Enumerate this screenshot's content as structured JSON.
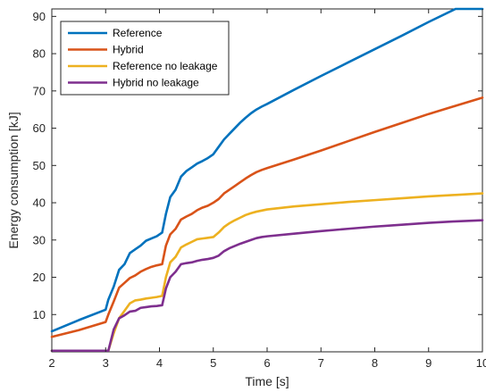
{
  "chart_data": {
    "type": "line",
    "title": "",
    "xlabel": "Time [s]",
    "ylabel": "Energy consumption [kJ]",
    "xlim": [
      2,
      10
    ],
    "ylim": [
      0,
      92
    ],
    "xticks": [
      2,
      3,
      4,
      5,
      6,
      7,
      8,
      9,
      10
    ],
    "yticks": [
      10,
      20,
      30,
      40,
      50,
      60,
      70,
      80,
      90
    ],
    "grid": false,
    "legend_position": "top-left",
    "series": [
      {
        "name": "Reference",
        "color": "#0072bd",
        "x": [
          2.0,
          2.5,
          3.0,
          3.05,
          3.15,
          3.25,
          3.35,
          3.45,
          3.55,
          3.65,
          3.75,
          3.85,
          3.95,
          4.05,
          4.12,
          4.2,
          4.3,
          4.4,
          4.5,
          4.6,
          4.7,
          4.8,
          4.9,
          5.0,
          5.1,
          5.2,
          5.3,
          5.4,
          5.5,
          5.6,
          5.7,
          5.8,
          5.9,
          6.0,
          6.5,
          7.0,
          7.5,
          8.0,
          8.5,
          9.0,
          9.5,
          10.0
        ],
        "y": [
          5.5,
          8.5,
          11.3,
          14.0,
          17.5,
          22.0,
          23.5,
          26.5,
          27.5,
          28.5,
          29.8,
          30.4,
          31.0,
          32.0,
          37.0,
          41.5,
          43.5,
          47.0,
          48.5,
          49.5,
          50.5,
          51.2,
          52.0,
          53.0,
          55.0,
          57.0,
          58.5,
          60.0,
          61.5,
          62.8,
          64.0,
          65.0,
          65.8,
          66.5,
          70.3,
          74.0,
          77.6,
          81.2,
          84.8,
          88.5,
          92.0,
          92.0
        ]
      },
      {
        "name": "Hybrid",
        "color": "#d95319",
        "x": [
          2.0,
          2.5,
          3.0,
          3.05,
          3.15,
          3.25,
          3.35,
          3.45,
          3.55,
          3.65,
          3.75,
          3.85,
          3.95,
          4.05,
          4.12,
          4.2,
          4.3,
          4.4,
          4.5,
          4.6,
          4.7,
          4.8,
          4.9,
          5.0,
          5.1,
          5.2,
          5.3,
          5.4,
          5.5,
          5.6,
          5.7,
          5.8,
          5.9,
          6.0,
          6.5,
          7.0,
          7.5,
          8.0,
          8.5,
          9.0,
          9.5,
          10.0
        ],
        "y": [
          4.0,
          5.8,
          8.0,
          10.0,
          13.5,
          17.2,
          18.5,
          19.8,
          20.5,
          21.5,
          22.2,
          22.8,
          23.2,
          23.5,
          28.5,
          31.5,
          33.0,
          35.5,
          36.3,
          37.0,
          38.0,
          38.7,
          39.2,
          40.0,
          41.0,
          42.5,
          43.5,
          44.5,
          45.5,
          46.5,
          47.4,
          48.2,
          48.8,
          49.3,
          51.6,
          54.0,
          56.5,
          59.0,
          61.4,
          63.8,
          66.0,
          68.2
        ]
      },
      {
        "name": "Reference no leakage",
        "color": "#edb120",
        "x": [
          2.0,
          2.5,
          3.0,
          3.05,
          3.15,
          3.25,
          3.35,
          3.45,
          3.55,
          3.65,
          3.75,
          3.85,
          3.95,
          4.05,
          4.12,
          4.2,
          4.3,
          4.4,
          4.5,
          4.6,
          4.7,
          4.8,
          4.9,
          5.0,
          5.1,
          5.2,
          5.3,
          5.4,
          5.5,
          5.6,
          5.7,
          5.8,
          5.9,
          6.0,
          6.5,
          7.0,
          7.5,
          8.0,
          8.5,
          9.0,
          9.5,
          10.0
        ],
        "y": [
          0.3,
          0.3,
          0.3,
          0.3,
          5.0,
          9.0,
          11.0,
          13.0,
          13.8,
          14.0,
          14.3,
          14.5,
          14.7,
          15.0,
          20.0,
          24.0,
          25.5,
          28.0,
          28.8,
          29.5,
          30.2,
          30.4,
          30.6,
          30.8,
          32.0,
          33.5,
          34.5,
          35.3,
          36.0,
          36.7,
          37.2,
          37.6,
          37.9,
          38.2,
          39.0,
          39.6,
          40.2,
          40.7,
          41.2,
          41.7,
          42.1,
          42.5
        ]
      },
      {
        "name": "Hybrid no leakage",
        "color": "#7e2f8e",
        "x": [
          2.0,
          2.5,
          3.0,
          3.05,
          3.15,
          3.25,
          3.35,
          3.45,
          3.55,
          3.65,
          3.75,
          3.85,
          3.95,
          4.05,
          4.12,
          4.2,
          4.3,
          4.4,
          4.5,
          4.6,
          4.7,
          4.8,
          4.9,
          5.0,
          5.1,
          5.2,
          5.3,
          5.4,
          5.5,
          5.6,
          5.7,
          5.8,
          5.9,
          6.0,
          6.5,
          7.0,
          7.5,
          8.0,
          8.5,
          9.0,
          9.5,
          10.0
        ],
        "y": [
          0.3,
          0.3,
          0.3,
          0.3,
          6.0,
          9.0,
          9.8,
          10.8,
          11.0,
          11.8,
          12.0,
          12.2,
          12.3,
          12.5,
          17.0,
          20.0,
          21.5,
          23.5,
          23.8,
          24.0,
          24.4,
          24.7,
          24.9,
          25.2,
          25.8,
          27.0,
          27.8,
          28.4,
          29.0,
          29.5,
          30.0,
          30.5,
          30.8,
          31.0,
          31.7,
          32.4,
          33.0,
          33.6,
          34.1,
          34.6,
          35.0,
          35.3
        ]
      }
    ]
  }
}
